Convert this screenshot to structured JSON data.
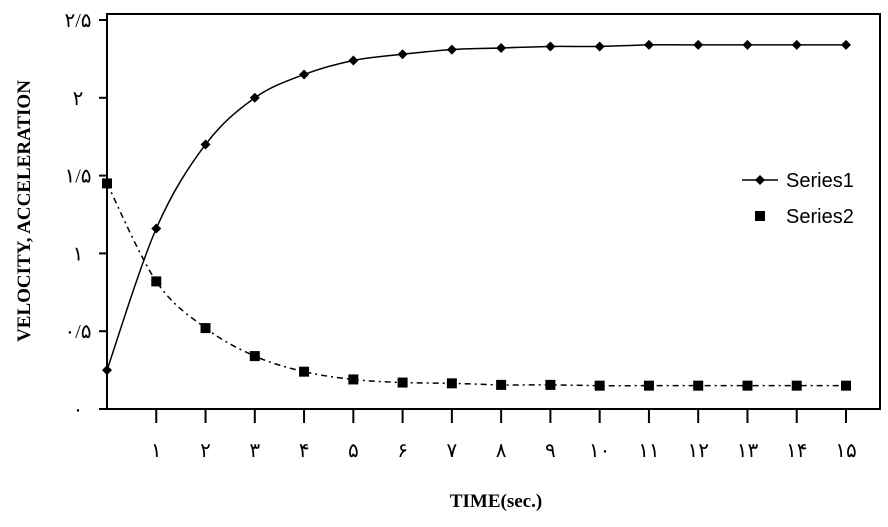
{
  "chart_data": {
    "type": "line",
    "title": "",
    "xlabel": "TIME(sec.)",
    "ylabel": "VELOCITY, ACCELERATION",
    "xlim": [
      0,
      15
    ],
    "ylim": [
      0,
      2.5
    ],
    "x": [
      0,
      1,
      2,
      3,
      4,
      5,
      6,
      7,
      8,
      9,
      10,
      11,
      12,
      13,
      14,
      15
    ],
    "x_tick_values": [
      1,
      2,
      3,
      4,
      5,
      6,
      7,
      8,
      9,
      10,
      11,
      12,
      13,
      14,
      15
    ],
    "x_tick_labels": [
      "١",
      "٢",
      "٣",
      "۴",
      "۵",
      "۶",
      "٧",
      "٨",
      "٩",
      "١٠",
      "١١",
      "١٢",
      "١٣",
      "١۴",
      "١۵"
    ],
    "y_tick_values": [
      0,
      0.5,
      1,
      1.5,
      2,
      2.5
    ],
    "y_tick_labels": [
      "٠",
      "٠/۵",
      "١",
      "١/۵",
      "٢",
      "٢/۵"
    ],
    "grid": false,
    "legend_position": "right",
    "series": [
      {
        "name": "Series1",
        "marker": "diamond",
        "line": "solid",
        "values": [
          0.25,
          1.16,
          1.7,
          2.0,
          2.15,
          2.24,
          2.28,
          2.31,
          2.32,
          2.33,
          2.33,
          2.34,
          2.34,
          2.34,
          2.34,
          2.34
        ]
      },
      {
        "name": "Series2",
        "marker": "square",
        "line": "dash-dot",
        "values": [
          1.45,
          0.82,
          0.52,
          0.34,
          0.24,
          0.19,
          0.17,
          0.165,
          0.155,
          0.155,
          0.15,
          0.15,
          0.15,
          0.15,
          0.15,
          0.15
        ]
      }
    ]
  }
}
